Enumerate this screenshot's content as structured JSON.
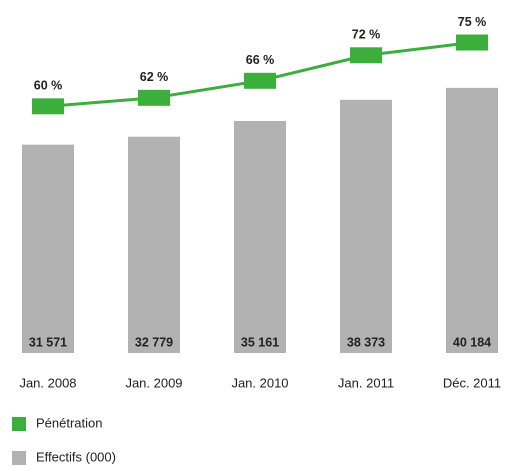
{
  "chart_data": {
    "type": "bar",
    "categories": [
      "Jan. 2008",
      "Jan. 2009",
      "Jan. 2010",
      "Jan. 2011",
      "Déc. 2011"
    ],
    "series": [
      {
        "name": "Effectifs (000)",
        "type": "bar",
        "color": "#b2b2b2",
        "values": [
          31571,
          32779,
          35161,
          38373,
          40184
        ],
        "value_labels": [
          "31 571",
          "32 779",
          "35 161",
          "38 373",
          "40 184"
        ]
      },
      {
        "name": "Pénétration",
        "type": "line",
        "axis": "y2",
        "color": "#3cae3c",
        "values": [
          60,
          62,
          66,
          72,
          75
        ],
        "value_labels": [
          "60 %",
          "62 %",
          "66 %",
          "72 %",
          "75 %"
        ]
      }
    ],
    "ylim": [
      0,
      53500
    ],
    "y2lim": [
      2,
      85
    ],
    "legend": "bottom-left"
  }
}
